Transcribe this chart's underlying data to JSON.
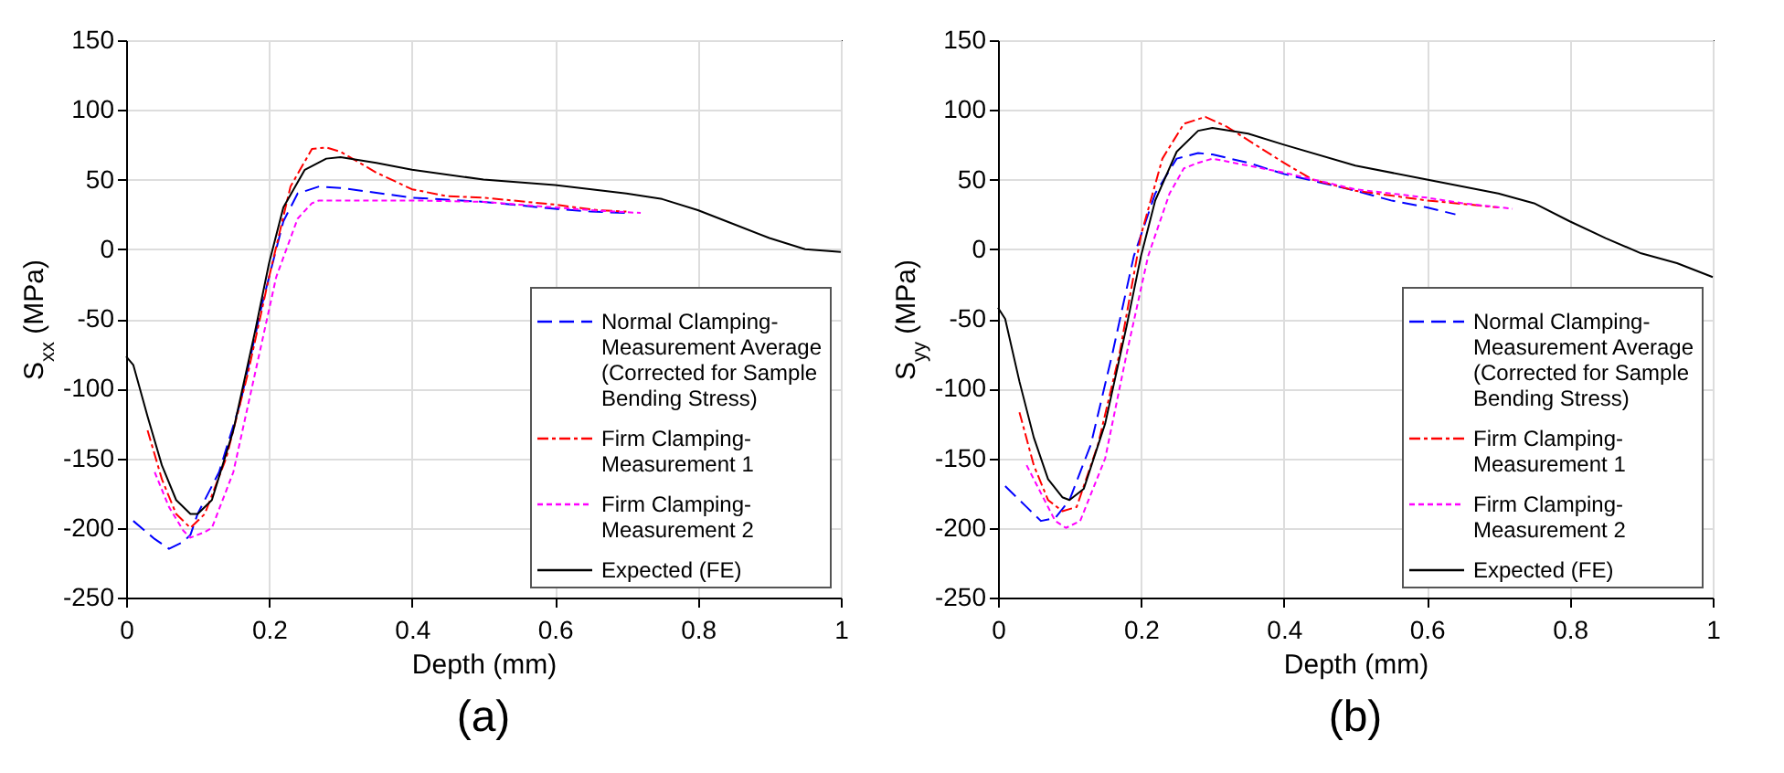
{
  "chart_data": [
    {
      "type": "line",
      "xlabel": "Depth (mm)",
      "ylabel": "S$_{xx}$ (MPa)",
      "annotations": [
        "(a)"
      ],
      "xlim": [
        0,
        1
      ],
      "xticks": [
        0,
        0.2,
        0.4,
        0.6,
        0.8,
        1
      ],
      "ylim": [
        -250,
        150
      ],
      "yticks": [
        -250,
        -200,
        -150,
        -100,
        -50,
        0,
        50,
        100,
        150
      ],
      "grid": true,
      "legend": "bottom right",
      "series": [
        {
          "name": "Normal Clamping-Measurement Average (Corrected for Sample Bending Stress)",
          "color": "#0000ff",
          "line_style": "dashed",
          "x": [
            0.01,
            0.04,
            0.06,
            0.08,
            0.09,
            0.1,
            0.13,
            0.16,
            0.19,
            0.22,
            0.24,
            0.27,
            0.3,
            0.4,
            0.5,
            0.6,
            0.65,
            0.7
          ],
          "values": [
            -195,
            -208,
            -215,
            -210,
            -205,
            -190,
            -160,
            -110,
            -40,
            20,
            40,
            45,
            44,
            37,
            34,
            29,
            27,
            26
          ]
        },
        {
          "name": "Firm Clamping-Measurement 1",
          "color": "#ff0000",
          "line_style": "dashdot",
          "x": [
            0.03,
            0.05,
            0.07,
            0.09,
            0.11,
            0.14,
            0.17,
            0.2,
            0.23,
            0.26,
            0.28,
            0.3,
            0.35,
            0.4,
            0.45,
            0.5,
            0.6,
            0.66,
            0.7
          ],
          "values": [
            -130,
            -165,
            -190,
            -200,
            -190,
            -150,
            -90,
            -20,
            45,
            72,
            73,
            70,
            55,
            43,
            38,
            37,
            32,
            28,
            27
          ]
        },
        {
          "name": "Firm Clamping-Measurement 2",
          "color": "#ff00ff",
          "line_style": "dotted",
          "x": [
            0.04,
            0.06,
            0.08,
            0.09,
            0.11,
            0.12,
            0.15,
            0.18,
            0.21,
            0.24,
            0.26,
            0.27,
            0.3,
            0.4,
            0.5,
            0.6,
            0.65,
            0.72
          ],
          "values": [
            -160,
            -185,
            -202,
            -207,
            -203,
            -200,
            -160,
            -90,
            -20,
            22,
            33,
            35,
            35,
            35,
            34,
            30,
            28,
            26
          ]
        },
        {
          "name": "Expected (FE)",
          "color": "#000000",
          "line_style": "solid",
          "x": [
            0,
            0.01,
            0.03,
            0.05,
            0.07,
            0.09,
            0.1,
            0.12,
            0.15,
            0.18,
            0.2,
            0.22,
            0.25,
            0.28,
            0.3,
            0.35,
            0.4,
            0.5,
            0.6,
            0.7,
            0.75,
            0.8,
            0.85,
            0.9,
            0.95,
            1
          ],
          "values": [
            -77,
            -83,
            -120,
            -155,
            -180,
            -190,
            -190,
            -180,
            -130,
            -60,
            -10,
            30,
            57,
            65,
            66,
            62,
            57,
            50,
            46,
            40,
            36,
            28,
            18,
            8,
            0,
            -2
          ]
        }
      ]
    },
    {
      "type": "line",
      "xlabel": "Depth (mm)",
      "ylabel": "S$_{yy}$ (MPa)",
      "annotations": [
        "(b)"
      ],
      "xlim": [
        0,
        1
      ],
      "xticks": [
        0,
        0.2,
        0.4,
        0.6,
        0.8,
        1
      ],
      "ylim": [
        -250,
        150
      ],
      "yticks": [
        -250,
        -200,
        -150,
        -100,
        -50,
        0,
        50,
        100,
        150
      ],
      "grid": true,
      "legend": "bottom right",
      "series": [
        {
          "name": "Normal Clamping-Measurement Average (Corrected for Sample Bending Stress)",
          "color": "#0000ff",
          "line_style": "dashed",
          "x": [
            0.01,
            0.04,
            0.06,
            0.08,
            0.1,
            0.13,
            0.16,
            0.19,
            0.22,
            0.25,
            0.28,
            0.3,
            0.35,
            0.4,
            0.5,
            0.55,
            0.6,
            0.64
          ],
          "values": [
            -170,
            -185,
            -195,
            -193,
            -180,
            -140,
            -75,
            -5,
            40,
            65,
            69,
            68,
            62,
            54,
            42,
            35,
            30,
            25
          ]
        },
        {
          "name": "Firm Clamping-Measurement 1",
          "color": "#ff0000",
          "line_style": "dashdot",
          "x": [
            0.03,
            0.05,
            0.07,
            0.09,
            0.11,
            0.14,
            0.17,
            0.2,
            0.23,
            0.26,
            0.29,
            0.32,
            0.36,
            0.4,
            0.44,
            0.5,
            0.6,
            0.66,
            0.7
          ],
          "values": [
            -117,
            -155,
            -180,
            -188,
            -185,
            -140,
            -75,
            10,
            65,
            90,
            95,
            88,
            75,
            62,
            50,
            42,
            35,
            32,
            30
          ]
        },
        {
          "name": "Firm Clamping-Measurement 2",
          "color": "#ff00ff",
          "line_style": "dotted",
          "x": [
            0.04,
            0.06,
            0.08,
            0.095,
            0.115,
            0.15,
            0.18,
            0.21,
            0.24,
            0.26,
            0.28,
            0.3,
            0.4,
            0.5,
            0.6,
            0.65,
            0.72
          ],
          "values": [
            -155,
            -175,
            -195,
            -200,
            -195,
            -150,
            -75,
            -5,
            40,
            58,
            62,
            65,
            55,
            43,
            37,
            33,
            29
          ]
        },
        {
          "name": "Expected (FE)",
          "color": "#000000",
          "line_style": "solid",
          "x": [
            0,
            0.01,
            0.03,
            0.05,
            0.07,
            0.09,
            0.1,
            0.12,
            0.15,
            0.18,
            0.2,
            0.22,
            0.25,
            0.28,
            0.3,
            0.35,
            0.4,
            0.5,
            0.6,
            0.7,
            0.75,
            0.8,
            0.85,
            0.9,
            0.95,
            1
          ],
          "values": [
            -42,
            -50,
            -95,
            -135,
            -165,
            -178,
            -180,
            -172,
            -125,
            -55,
            -5,
            35,
            70,
            85,
            87,
            83,
            75,
            60,
            50,
            40,
            33,
            20,
            8,
            -3,
            -10,
            -20
          ]
        }
      ]
    }
  ]
}
